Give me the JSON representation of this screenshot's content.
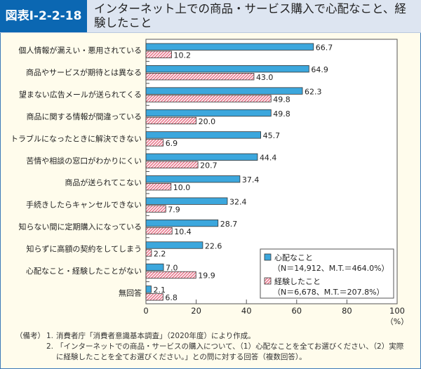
{
  "header": {
    "figure_label": "図表Ⅰ-2-2-18",
    "title": "インターネット上での商品・サービス購入で心配なこと、経験したこと"
  },
  "chart_data": {
    "type": "bar",
    "orientation": "horizontal",
    "categories": [
      "個人情報が漏えい・悪用されている",
      "商品やサービスが期待とは異なる",
      "望まない広告メールが送られてくる",
      "商品に関する情報が間違っている",
      "トラブルになったときに解決できない",
      "苦情や相談の窓口がわかりにくい",
      "商品が送られてこない",
      "手続きしたらキャンセルできない",
      "知らない間に定期購入になっている",
      "知らずに高額の契約をしてしまう",
      "心配なこと・経験したことがない",
      "無回答"
    ],
    "series": [
      {
        "name": "心配なこと",
        "legend_note": "（N＝14,912、M.T.＝464.0%）",
        "color": "#3ca7dd",
        "values": [
          66.7,
          64.9,
          62.3,
          49.8,
          45.7,
          44.4,
          37.4,
          32.4,
          28.7,
          22.6,
          7.0,
          2.1
        ]
      },
      {
        "name": "経験したこと",
        "legend_note": "（N＝6,678、M.T.＝207.8%）",
        "color": "#e8778c",
        "pattern": "hatched",
        "values": [
          10.2,
          43.0,
          49.8,
          20.0,
          6.9,
          20.7,
          10.0,
          7.9,
          10.4,
          2.2,
          19.9,
          6.8
        ]
      }
    ],
    "xlim": [
      0,
      100
    ],
    "xticks": [
      0,
      20,
      40,
      60,
      80,
      100
    ],
    "xunit": "（%）",
    "legend": "bottom-right",
    "grid": false
  },
  "notes": {
    "label": "（備考）",
    "items": [
      {
        "num": "1.",
        "text": "消費者庁「消費者意識基本調査」（2020年度）により作成。"
      },
      {
        "num": "2.",
        "text": "「インターネットでの商品・サービスの購入について、（1）心配なことを全てお選びください、（2）実際に経験したことを全てお選びください。」との問に対する回答（複数回答）。"
      }
    ]
  }
}
